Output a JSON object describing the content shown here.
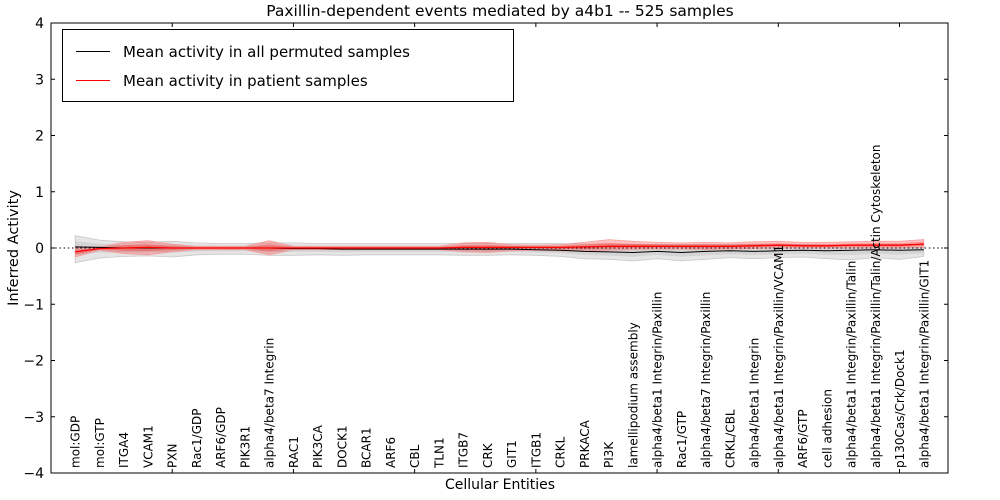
{
  "title": "Paxillin-dependent events mediated by a4b1 -- 525 samples",
  "legend": {
    "items": [
      {
        "label": "Mean activity in all permuted samples",
        "color": "#000000"
      },
      {
        "label": "Mean activity in patient samples",
        "color": "#ff0000"
      }
    ]
  },
  "chart_data": {
    "type": "line",
    "title": "Paxillin-dependent events mediated by a4b1 -- 525 samples",
    "xlabel": "Cellular Entities",
    "ylabel": "Inferred Activity",
    "xlim": [
      0,
      37
    ],
    "ylim": [
      -4,
      4
    ],
    "yticks": [
      -4,
      -3,
      -2,
      -1,
      0,
      1,
      2,
      3,
      4
    ],
    "xticks": [
      5,
      10,
      15,
      20,
      25,
      30,
      35
    ],
    "grid": false,
    "legend_position": "upper left",
    "zero_line": {
      "y": 0,
      "style": "dotted",
      "color": "#000000"
    },
    "band_colors": {
      "permuted": "rgba(0,0,0,0.10)",
      "patient": "rgba(255,0,0,0.24)"
    },
    "categories": [
      "mol:GDP",
      "mol:GTP",
      "ITGA4",
      "VCAM1",
      "PXN",
      "Rac1/GDP",
      "ARF6/GDP",
      "PIK3R1",
      "alpha4/beta7 Integrin",
      "RAC1",
      "PIK3CA",
      "DOCK1",
      "BCAR1",
      "ARF6",
      "CBL",
      "TLN1",
      "ITGB7",
      "CRK",
      "GIT1",
      "ITGB1",
      "CRKL",
      "PRKACA",
      "PI3K",
      "lamellipodium assembly",
      "alpha4/beta1 Integrin/Paxillin",
      "Rac1/GTP",
      "alpha4/beta7 Integrin/Paxillin",
      "CRKL/CBL",
      "alpha4/beta1 Integrin",
      "alpha4/beta1 Integrin/Paxillin/VCAM1",
      "ARF6/GTP",
      "cell adhesion",
      "alpha4/beta1 Integrin/Paxillin/Talin",
      "alpha4/beta1 Integrin/Paxillin/Talin/Actin Cytoskeleton",
      "p130Cas/Crk/Dock1",
      "alpha4/beta1 Integrin/Paxillin/GIT1"
    ],
    "series": [
      {
        "name": "Mean activity in all permuted samples",
        "color": "#000000",
        "line_width": 1.0,
        "values": [
          0.02,
          0.01,
          0.0,
          0.0,
          0.0,
          0.0,
          0.0,
          0.0,
          0.0,
          -0.01,
          -0.01,
          -0.02,
          -0.02,
          -0.02,
          -0.02,
          -0.02,
          -0.02,
          -0.02,
          -0.02,
          -0.03,
          -0.04,
          -0.06,
          -0.07,
          -0.08,
          -0.06,
          -0.08,
          -0.06,
          -0.05,
          -0.06,
          -0.05,
          -0.04,
          -0.05,
          -0.04,
          -0.03,
          -0.04,
          -0.03
        ],
        "band_hi": [
          0.22,
          0.14,
          0.11,
          0.1,
          0.12,
          0.09,
          0.08,
          0.08,
          0.09,
          0.09,
          0.08,
          0.08,
          0.08,
          0.08,
          0.08,
          0.08,
          0.08,
          0.08,
          0.08,
          0.08,
          0.08,
          0.07,
          0.07,
          0.06,
          0.06,
          0.06,
          0.06,
          0.06,
          0.06,
          0.06,
          0.06,
          0.05,
          0.05,
          0.06,
          0.06,
          0.06
        ],
        "band_lo": [
          -0.26,
          -0.18,
          -0.15,
          -0.14,
          -0.16,
          -0.12,
          -0.11,
          -0.11,
          -0.13,
          -0.13,
          -0.12,
          -0.13,
          -0.12,
          -0.12,
          -0.12,
          -0.12,
          -0.13,
          -0.13,
          -0.12,
          -0.13,
          -0.15,
          -0.19,
          -0.2,
          -0.23,
          -0.19,
          -0.23,
          -0.2,
          -0.17,
          -0.19,
          -0.17,
          -0.16,
          -0.19,
          -0.21,
          -0.17,
          -0.2,
          -0.15
        ]
      },
      {
        "name": "Mean activity in patient samples",
        "color": "#ff0000",
        "line_width": 1.3,
        "values": [
          -0.07,
          -0.01,
          0.0,
          0.01,
          0.0,
          0.0,
          0.0,
          0.0,
          0.0,
          0.0,
          0.0,
          0.0,
          0.0,
          0.0,
          0.0,
          0.0,
          0.01,
          0.01,
          0.01,
          0.01,
          0.01,
          0.02,
          0.03,
          0.03,
          0.03,
          0.03,
          0.03,
          0.03,
          0.04,
          0.05,
          0.04,
          0.04,
          0.05,
          0.05,
          0.05,
          0.07
        ],
        "band_hi": [
          0.0,
          0.02,
          0.1,
          0.13,
          0.07,
          0.03,
          0.03,
          0.03,
          0.13,
          0.03,
          0.03,
          0.03,
          0.03,
          0.03,
          0.03,
          0.03,
          0.09,
          0.1,
          0.06,
          0.05,
          0.06,
          0.1,
          0.15,
          0.12,
          0.1,
          0.09,
          0.1,
          0.09,
          0.11,
          0.12,
          0.1,
          0.1,
          0.11,
          0.12,
          0.12,
          0.15
        ],
        "band_lo": [
          -0.16,
          -0.04,
          -0.1,
          -0.12,
          -0.07,
          -0.03,
          -0.03,
          -0.03,
          -0.12,
          -0.03,
          -0.03,
          -0.03,
          -0.03,
          -0.03,
          -0.03,
          -0.03,
          -0.07,
          -0.08,
          -0.05,
          -0.04,
          -0.05,
          -0.06,
          -0.04,
          -0.03,
          -0.02,
          -0.02,
          -0.03,
          -0.02,
          -0.01,
          0.0,
          0.0,
          0.0,
          0.0,
          0.0,
          0.0,
          0.01
        ]
      }
    ]
  }
}
